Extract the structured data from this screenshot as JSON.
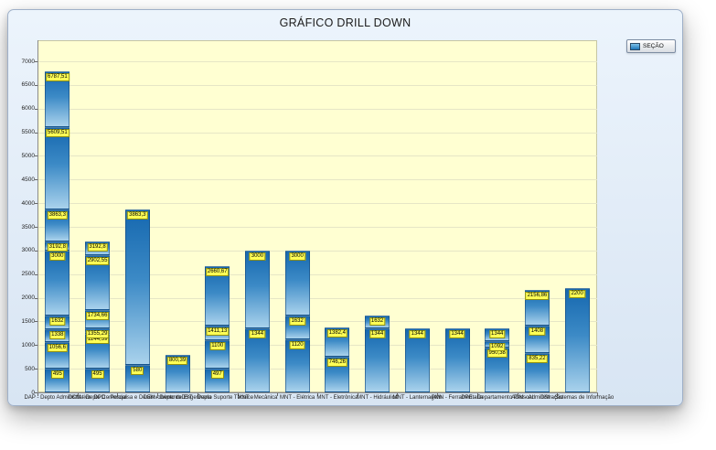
{
  "window": {
    "title": "GRÁFICO DRILL DOWN"
  },
  "legend": {
    "label": "SEÇÃO",
    "swatch_color": "#1f77b8"
  },
  "chart_data": {
    "type": "bar",
    "title": "GRÁFICO DRILL DOWN",
    "stacked": true,
    "ylabel": "",
    "xlabel": "",
    "ylim": [
      0,
      7000
    ],
    "ytick_step": 500,
    "grid": true,
    "legend_position": "top-right",
    "plot_background": "#ffffd2",
    "bar_gradient": [
      "#1668af",
      "#a9d2ec"
    ],
    "value_label_background": "#ffff55",
    "categories": [
      "DAP - Depto Administrativo",
      "DCM - Depto Comercial",
      "DPD - Pesquisa e Desenvolvimento",
      "DEN - Depto de Engenharia",
      "DST - Depto Suporte Técnico",
      "MNT - Mecânica",
      "MNT - Elétrica",
      "MNT - Eletrônica",
      "MNT - Hidráulica",
      "MNT - Lanternagem",
      "PMN - Ferramentaria",
      "DPE - Departamento Pessoal",
      "ADM - Administração",
      "DSI - Sistemas de Informação"
    ],
    "bars": [
      {
        "category_index": 0,
        "total": 6787.51,
        "boundaries": [
          {
            "v": 495,
            "label": "495"
          },
          {
            "v": 1056.6,
            "label": "1056,6"
          },
          {
            "v": 1338,
            "label": "1338"
          },
          {
            "v": 1632,
            "label": "1632"
          },
          {
            "v": 3000,
            "label": "3000"
          },
          {
            "v": 3192.8,
            "label": "3192,8"
          },
          {
            "v": 3863.3,
            "label": "3863,3"
          },
          {
            "v": 5609.51,
            "label": "5609,51"
          },
          {
            "v": 6787.51,
            "label": "6787,51"
          }
        ]
      },
      {
        "category_index": 1,
        "total": 3192.8,
        "boundaries": [
          {
            "v": 495,
            "label": "495"
          },
          {
            "v": 1244.39,
            "label": "1244,39"
          },
          {
            "v": 1355.29,
            "label": "1355,29"
          },
          {
            "v": 1734.66,
            "label": "1734,66"
          },
          {
            "v": 2902.55,
            "label": "2902,55"
          },
          {
            "v": 3192.8,
            "label": "3192,8"
          }
        ]
      },
      {
        "category_index": 2,
        "total": 3863.3,
        "boundaries": [
          {
            "v": 580,
            "label": "580"
          },
          {
            "v": 3863.3,
            "label": "3863,3"
          }
        ]
      },
      {
        "category_index": 3,
        "total": 800.39,
        "boundaries": [
          {
            "v": 800.39,
            "label": "800,39"
          }
        ]
      },
      {
        "category_index": 4,
        "total": 2660.67,
        "boundaries": [
          {
            "v": 497,
            "label": "497"
          },
          {
            "v": 1100,
            "label": "1100"
          },
          {
            "v": 1411.13,
            "label": "1411,13"
          },
          {
            "v": 2660.67,
            "label": "2660,67"
          }
        ]
      },
      {
        "category_index": 5,
        "total": 3000,
        "boundaries": [
          {
            "v": 1344,
            "label": "1344"
          },
          {
            "v": 3000,
            "label": "3000"
          }
        ]
      },
      {
        "category_index": 6,
        "total": 3000,
        "boundaries": [
          {
            "v": 1120,
            "label": "1120"
          },
          {
            "v": 1632,
            "label": "1632"
          },
          {
            "v": 3000,
            "label": "3000"
          }
        ]
      },
      {
        "category_index": 7,
        "total": 1382.4,
        "boundaries": [
          {
            "v": 746.26,
            "label": "746,26"
          },
          {
            "v": 1382.4,
            "label": "1382,4"
          }
        ]
      },
      {
        "category_index": 8,
        "total": 1632,
        "boundaries": [
          {
            "v": 1344,
            "label": "1344"
          },
          {
            "v": 1632,
            "label": "1632"
          }
        ]
      },
      {
        "category_index": 9,
        "total": 1344,
        "boundaries": [
          {
            "v": 1344,
            "label": "1344"
          }
        ]
      },
      {
        "category_index": 10,
        "total": 1344,
        "boundaries": [
          {
            "v": 1344,
            "label": "1344"
          }
        ]
      },
      {
        "category_index": 11,
        "total": 1344,
        "boundaries": [
          {
            "v": 950.38,
            "label": "950,38"
          },
          {
            "v": 1092,
            "label": "1092"
          },
          {
            "v": 1344,
            "label": "1344"
          }
        ]
      },
      {
        "category_index": 12,
        "total": 2156.86,
        "boundaries": [
          {
            "v": 835.22,
            "label": "835,22"
          },
          {
            "v": 1408,
            "label": "1408"
          },
          {
            "v": 2156.86,
            "label": "2156,86"
          }
        ]
      },
      {
        "category_index": 13,
        "total": 2200,
        "boundaries": [
          {
            "v": 2200,
            "label": "2200"
          }
        ]
      }
    ]
  }
}
